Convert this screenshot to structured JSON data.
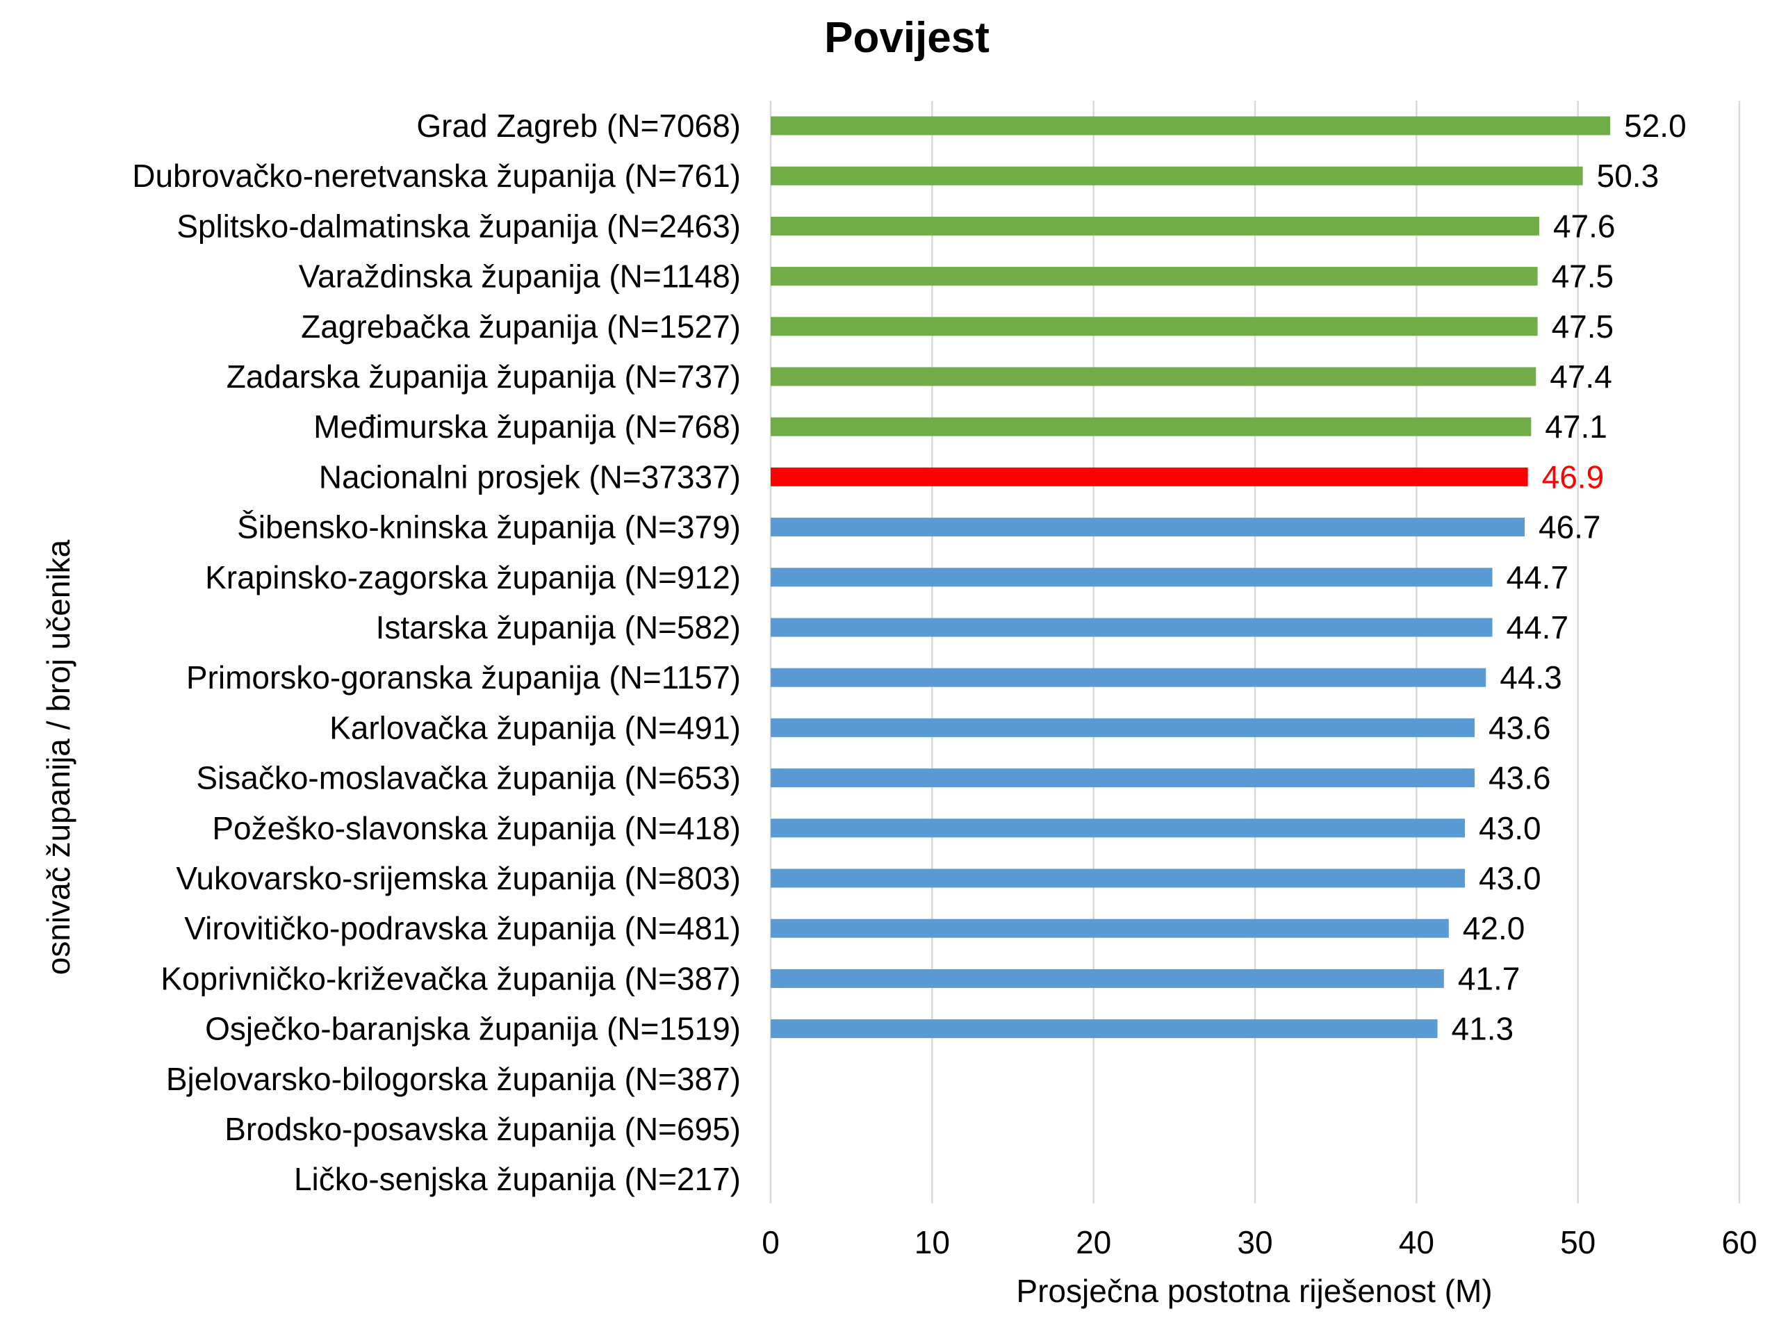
{
  "chart_data": {
    "type": "bar",
    "orientation": "horizontal",
    "title": "Povijest",
    "xlabel": "Prosječna postotna riješenost (M)",
    "ylabel": "osnivač županija / broj učenika",
    "xlim": [
      0,
      60
    ],
    "xticks": [
      0,
      10,
      20,
      30,
      40,
      50,
      60
    ],
    "xtick_labels": [
      "0",
      "10",
      "20",
      "30",
      "40",
      "50",
      "60"
    ],
    "grid": "vertical",
    "legend": "none",
    "colors": {
      "above_average": "#70ad47",
      "national_average": "#ff0000",
      "below_average": "#5b9bd5",
      "value_default": "#000000",
      "value_highlight": "#ff0000"
    },
    "categories": [
      "Grad Zagreb (N=7068)",
      "Dubrovačko-neretvanska županija (N=761)",
      "Splitsko-dalmatinska županija (N=2463)",
      "Varaždinska županija (N=1148)",
      "Zagrebačka županija (N=1527)",
      "Zadarska županija županija (N=737)",
      "Međimurska županija (N=768)",
      "Nacionalni prosjek (N=37337)",
      "Šibensko-kninska županija (N=379)",
      "Krapinsko-zagorska županija (N=912)",
      "Istarska županija (N=582)",
      "Primorsko-goranska županija (N=1157)",
      "Karlovačka županija (N=491)",
      "Sisačko-moslavačka županija (N=653)",
      "Požeško-slavonska županija (N=418)",
      "Vukovarsko-srijemska županija (N=803)",
      "Virovitičko-podravska županija (N=481)",
      "Koprivničko-križevačka županija (N=387)",
      "Osječko-baranjska županija (N=1519)",
      "Bjelovarsko-bilogorska županija (N=387)",
      "Brodsko-posavska županija (N=695)",
      "Ličko-senjska županija (N=217)"
    ],
    "values": [
      52.0,
      50.3,
      47.6,
      47.5,
      47.5,
      47.4,
      47.1,
      46.9,
      46.7,
      44.7,
      44.7,
      44.3,
      43.6,
      43.6,
      43.0,
      43.0,
      42.0,
      41.7,
      41.3,
      null,
      null,
      null
    ],
    "value_labels": [
      "52.0",
      "50.3",
      "47.6",
      "47.5",
      "47.5",
      "47.4",
      "47.1",
      "46.9",
      "46.7",
      "44.7",
      "44.7",
      "44.3",
      "43.6",
      "43.6",
      "43.0",
      "43.0",
      "42.0",
      "41.7",
      "41.3",
      "",
      "",
      ""
    ],
    "bar_groups": [
      "above",
      "above",
      "above",
      "above",
      "above",
      "above",
      "above",
      "national",
      "below",
      "below",
      "below",
      "below",
      "below",
      "below",
      "below",
      "below",
      "below",
      "below",
      "below",
      "none",
      "none",
      "none"
    ]
  }
}
